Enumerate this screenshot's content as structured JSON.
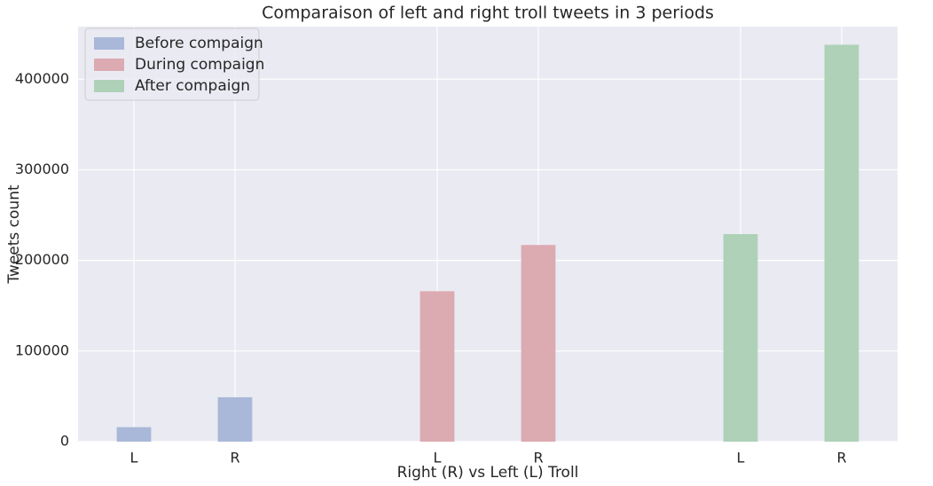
{
  "chart_data": {
    "type": "bar",
    "title": "Comparaison of left and right troll tweets in 3 periods",
    "xlabel": "Right (R) vs Left (L) Troll",
    "ylabel": "Tweets count",
    "categories": [
      "L",
      "R",
      null,
      "L",
      "R",
      null,
      "L",
      "R"
    ],
    "series": [
      {
        "name": "Before compaign",
        "color": "#a9b8d8",
        "values": [
          16000,
          49000,
          null,
          null,
          null,
          null,
          null,
          null
        ]
      },
      {
        "name": "During compaign",
        "color": "#dcaab1",
        "values": [
          null,
          null,
          null,
          166000,
          217000,
          null,
          null,
          null
        ]
      },
      {
        "name": "After compaign",
        "color": "#aed1b8",
        "values": [
          null,
          null,
          null,
          null,
          null,
          null,
          229000,
          438000
        ]
      }
    ],
    "ylim": [
      0,
      458000
    ],
    "yticks": [
      0,
      100000,
      200000,
      300000,
      400000
    ],
    "grid": true,
    "legend": "upper left"
  }
}
